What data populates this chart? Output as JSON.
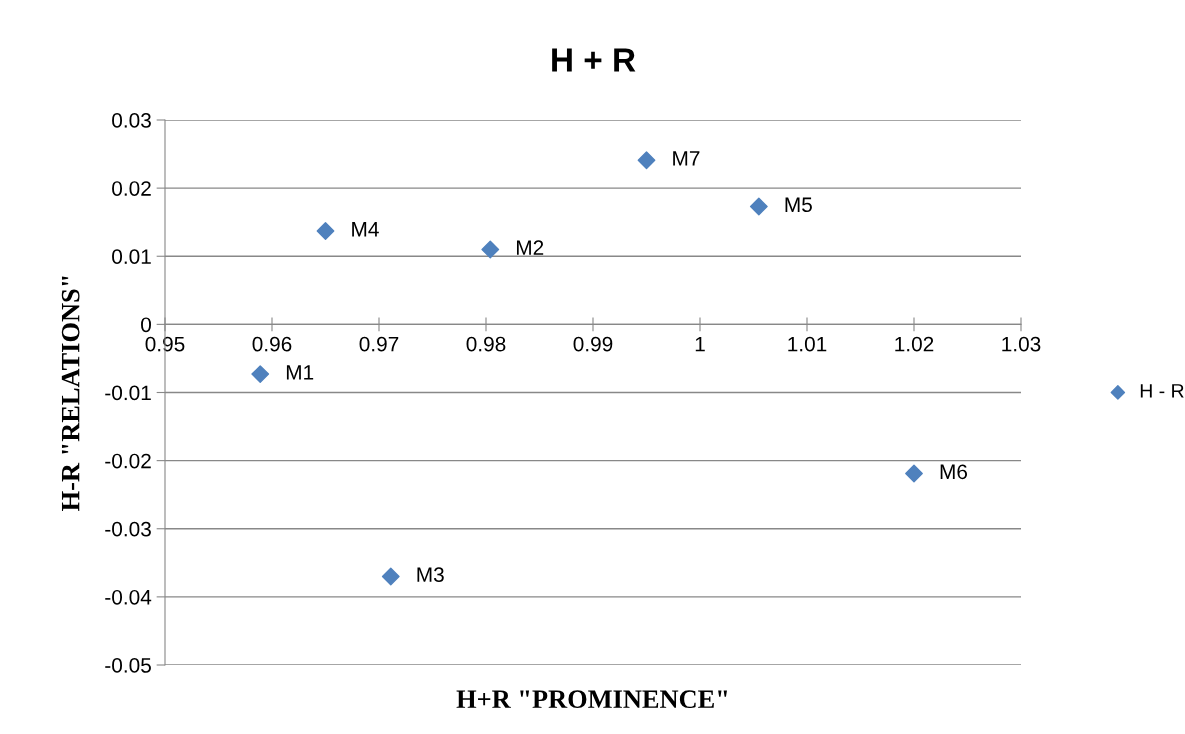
{
  "chart_data": {
    "type": "scatter",
    "title": "H + R",
    "xlabel": "H+R \"PROMINENCE\"",
    "ylabel": "H-R \"RELATIONS\"",
    "series": [
      {
        "name": "H - R",
        "color": "#4f81bd",
        "x": [
          0.9589,
          0.9804,
          0.9711,
          0.965,
          1.0055,
          1.02,
          0.995
        ],
        "values": [
          -0.0073,
          0.011,
          -0.037,
          0.0137,
          0.0173,
          -0.0219,
          0.0241
        ]
      }
    ],
    "annotations": [
      {
        "text": "M1",
        "x": 0.9589,
        "y": -0.0073
      },
      {
        "text": "M2",
        "x": 0.9804,
        "y": 0.011
      },
      {
        "text": "M3",
        "x": 0.9711,
        "y": -0.037
      },
      {
        "text": "M4",
        "x": 0.965,
        "y": 0.0137
      },
      {
        "text": "M5",
        "x": 1.0055,
        "y": 0.0173
      },
      {
        "text": "M6",
        "x": 1.02,
        "y": -0.0219
      },
      {
        "text": "M7",
        "x": 0.995,
        "y": 0.0241
      }
    ],
    "xlim": [
      0.95,
      1.03
    ],
    "xticks": [
      0.95,
      0.96,
      0.97,
      0.98,
      0.99,
      1,
      1.01,
      1.02,
      1.03
    ],
    "ylim": [
      -0.05,
      0.03
    ],
    "yticks": [
      -0.05,
      -0.04,
      -0.03,
      -0.02,
      -0.01,
      0,
      0.01,
      0.02,
      0.03
    ],
    "grid": "y",
    "legend": "right",
    "marker": "diamond"
  }
}
